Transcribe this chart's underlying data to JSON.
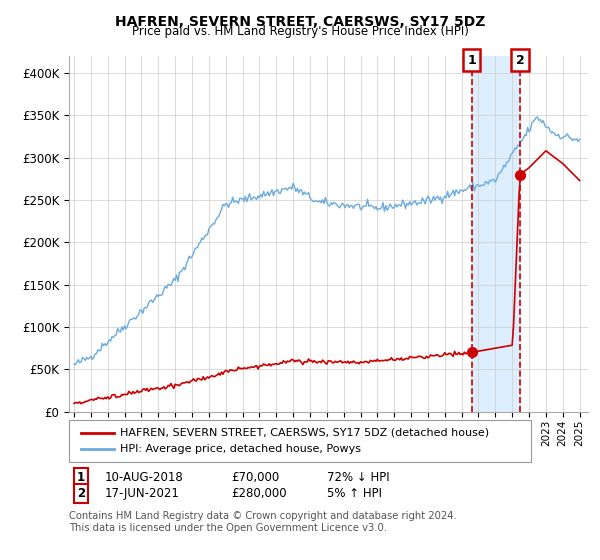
{
  "title": "HAFREN, SEVERN STREET, CAERSWS, SY17 5DZ",
  "subtitle": "Price paid vs. HM Land Registry's House Price Index (HPI)",
  "legend_label_red": "HAFREN, SEVERN STREET, CAERSWS, SY17 5DZ (detached house)",
  "legend_label_blue": "HPI: Average price, detached house, Powys",
  "annotation1_date": "10-AUG-2018",
  "annotation1_price": "£70,000",
  "annotation1_hpi": "72% ↓ HPI",
  "annotation1_year": 2018.6,
  "annotation1_value": 70000,
  "annotation2_date": "17-JUN-2021",
  "annotation2_price": "£280,000",
  "annotation2_hpi": "5% ↑ HPI",
  "annotation2_year": 2021.46,
  "annotation2_value": 280000,
  "footer": "Contains HM Land Registry data © Crown copyright and database right 2024.\nThis data is licensed under the Open Government Licence v3.0.",
  "ylim": [
    0,
    420000
  ],
  "yticks": [
    0,
    50000,
    100000,
    150000,
    200000,
    250000,
    300000,
    350000,
    400000
  ],
  "ytick_labels": [
    "£0",
    "£50K",
    "£100K",
    "£150K",
    "£200K",
    "£250K",
    "£300K",
    "£350K",
    "£400K"
  ],
  "hpi_color": "#6aabdf",
  "price_color": "#cc0000",
  "shade_color": "#ddeeff",
  "background_color": "#ffffff",
  "plot_bg_color": "#ffffff",
  "grid_color": "#cccccc"
}
